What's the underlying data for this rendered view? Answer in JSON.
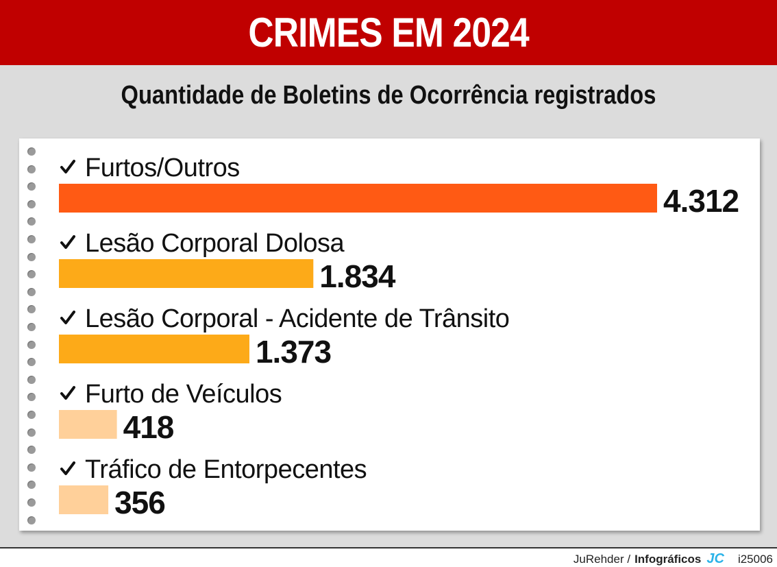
{
  "header": {
    "title": "CRIMES EM 2024"
  },
  "subtitle": "Quantidade de Boletins de Ocorrência registrados",
  "footer": {
    "author": "JuRehder /",
    "agency": "Infográficos",
    "logo": "JC",
    "code": "i25006"
  },
  "colors": {
    "header_bg": "#c00000",
    "bar_top": "#ff5a14",
    "bar_mid": "#fdaa18",
    "bar_low": "#ffd09a"
  },
  "chart_data": {
    "type": "bar",
    "orientation": "horizontal",
    "title": "CRIMES EM 2024",
    "subtitle": "Quantidade de Boletins de Ocorrência registrados",
    "categories": [
      "Furtos/Outros",
      "Lesão Corporal Dolosa",
      "Lesão Corporal - Acidente de Trânsito",
      "Furto de Veículos",
      "Tráfico de Entorpecentes"
    ],
    "values": [
      4312,
      1834,
      1373,
      418,
      356
    ],
    "value_labels": [
      "4.312",
      "1.834",
      "1.373",
      "418",
      "356"
    ],
    "bar_colors": [
      "#ff5a14",
      "#fdaa18",
      "#fdaa18",
      "#ffd09a",
      "#ffd09a"
    ],
    "category_icon": "check-icon",
    "xlim": [
      0,
      4312
    ],
    "grid": false,
    "legend": "none"
  }
}
